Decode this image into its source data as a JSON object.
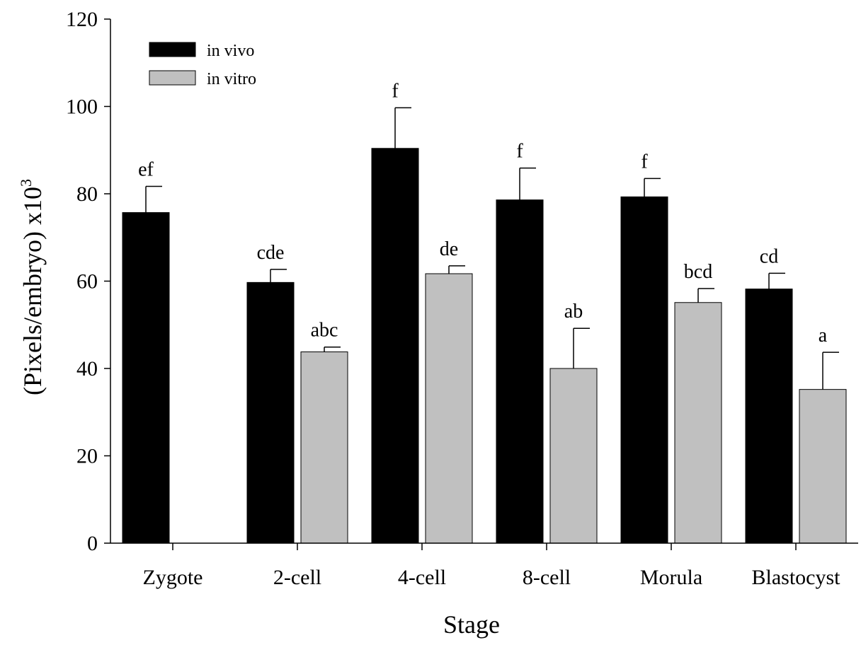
{
  "chart_data": {
    "type": "bar",
    "title": "",
    "xlabel": "Stage",
    "ylabel_main": "(Pixels/embryo) x10",
    "ylabel_sup": "3",
    "ylim": [
      0,
      120
    ],
    "yticks": [
      "0",
      "20",
      "40",
      "60",
      "80",
      "100",
      "120"
    ],
    "categories": [
      "Zygote",
      "2-cell",
      "4-cell",
      "8-cell",
      "Morula",
      "Blastocyst"
    ],
    "legend_position": "top-left",
    "grid": false,
    "series": [
      {
        "name": "in vivo",
        "color": "#000000",
        "values": [
          75.7,
          59.7,
          90.4,
          78.6,
          79.3,
          58.2
        ],
        "error": [
          6.0,
          3.0,
          9.3,
          7.3,
          4.2,
          3.6
        ],
        "labels": [
          "ef",
          "cde",
          "f",
          "f",
          "f",
          "cd"
        ]
      },
      {
        "name": "in vitro",
        "color": "#c0c0c0",
        "values": [
          null,
          43.8,
          61.7,
          40.0,
          55.1,
          35.2
        ],
        "error": [
          null,
          1.1,
          1.8,
          9.2,
          3.2,
          8.5
        ],
        "labels": [
          "",
          "abc",
          "de",
          "ab",
          "bcd",
          "a"
        ]
      }
    ]
  }
}
